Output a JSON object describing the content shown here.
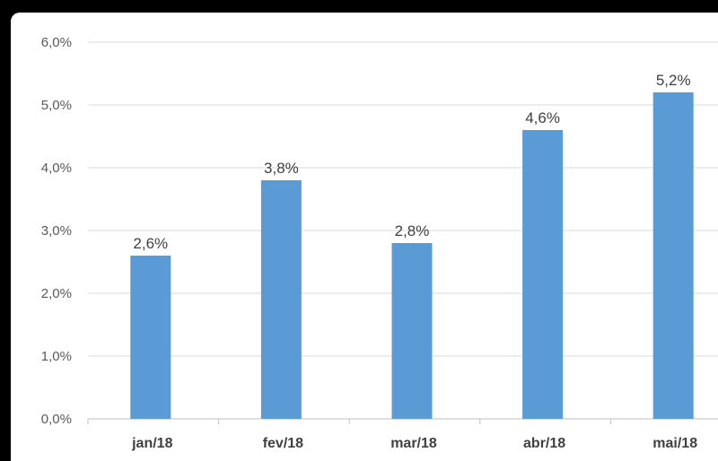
{
  "chart_data": {
    "type": "bar",
    "categories": [
      "jan/18",
      "fev/18",
      "mar/18",
      "abr/18",
      "mai/18"
    ],
    "values": [
      2.6,
      3.8,
      2.8,
      4.6,
      5.2
    ],
    "data_labels": [
      "2,6%",
      "3,8%",
      "2,8%",
      "4,6%",
      "5,2%"
    ],
    "title": "",
    "xlabel": "",
    "ylabel": "",
    "ylim": [
      0,
      6
    ],
    "yticks": [
      0,
      1,
      2,
      3,
      4,
      5,
      6
    ],
    "ytick_labels": [
      "0,0%",
      "1,0%",
      "2,0%",
      "3,0%",
      "4,0%",
      "5,0%",
      "6,0%"
    ],
    "grid": true,
    "bar_color": "#5b9bd5"
  }
}
